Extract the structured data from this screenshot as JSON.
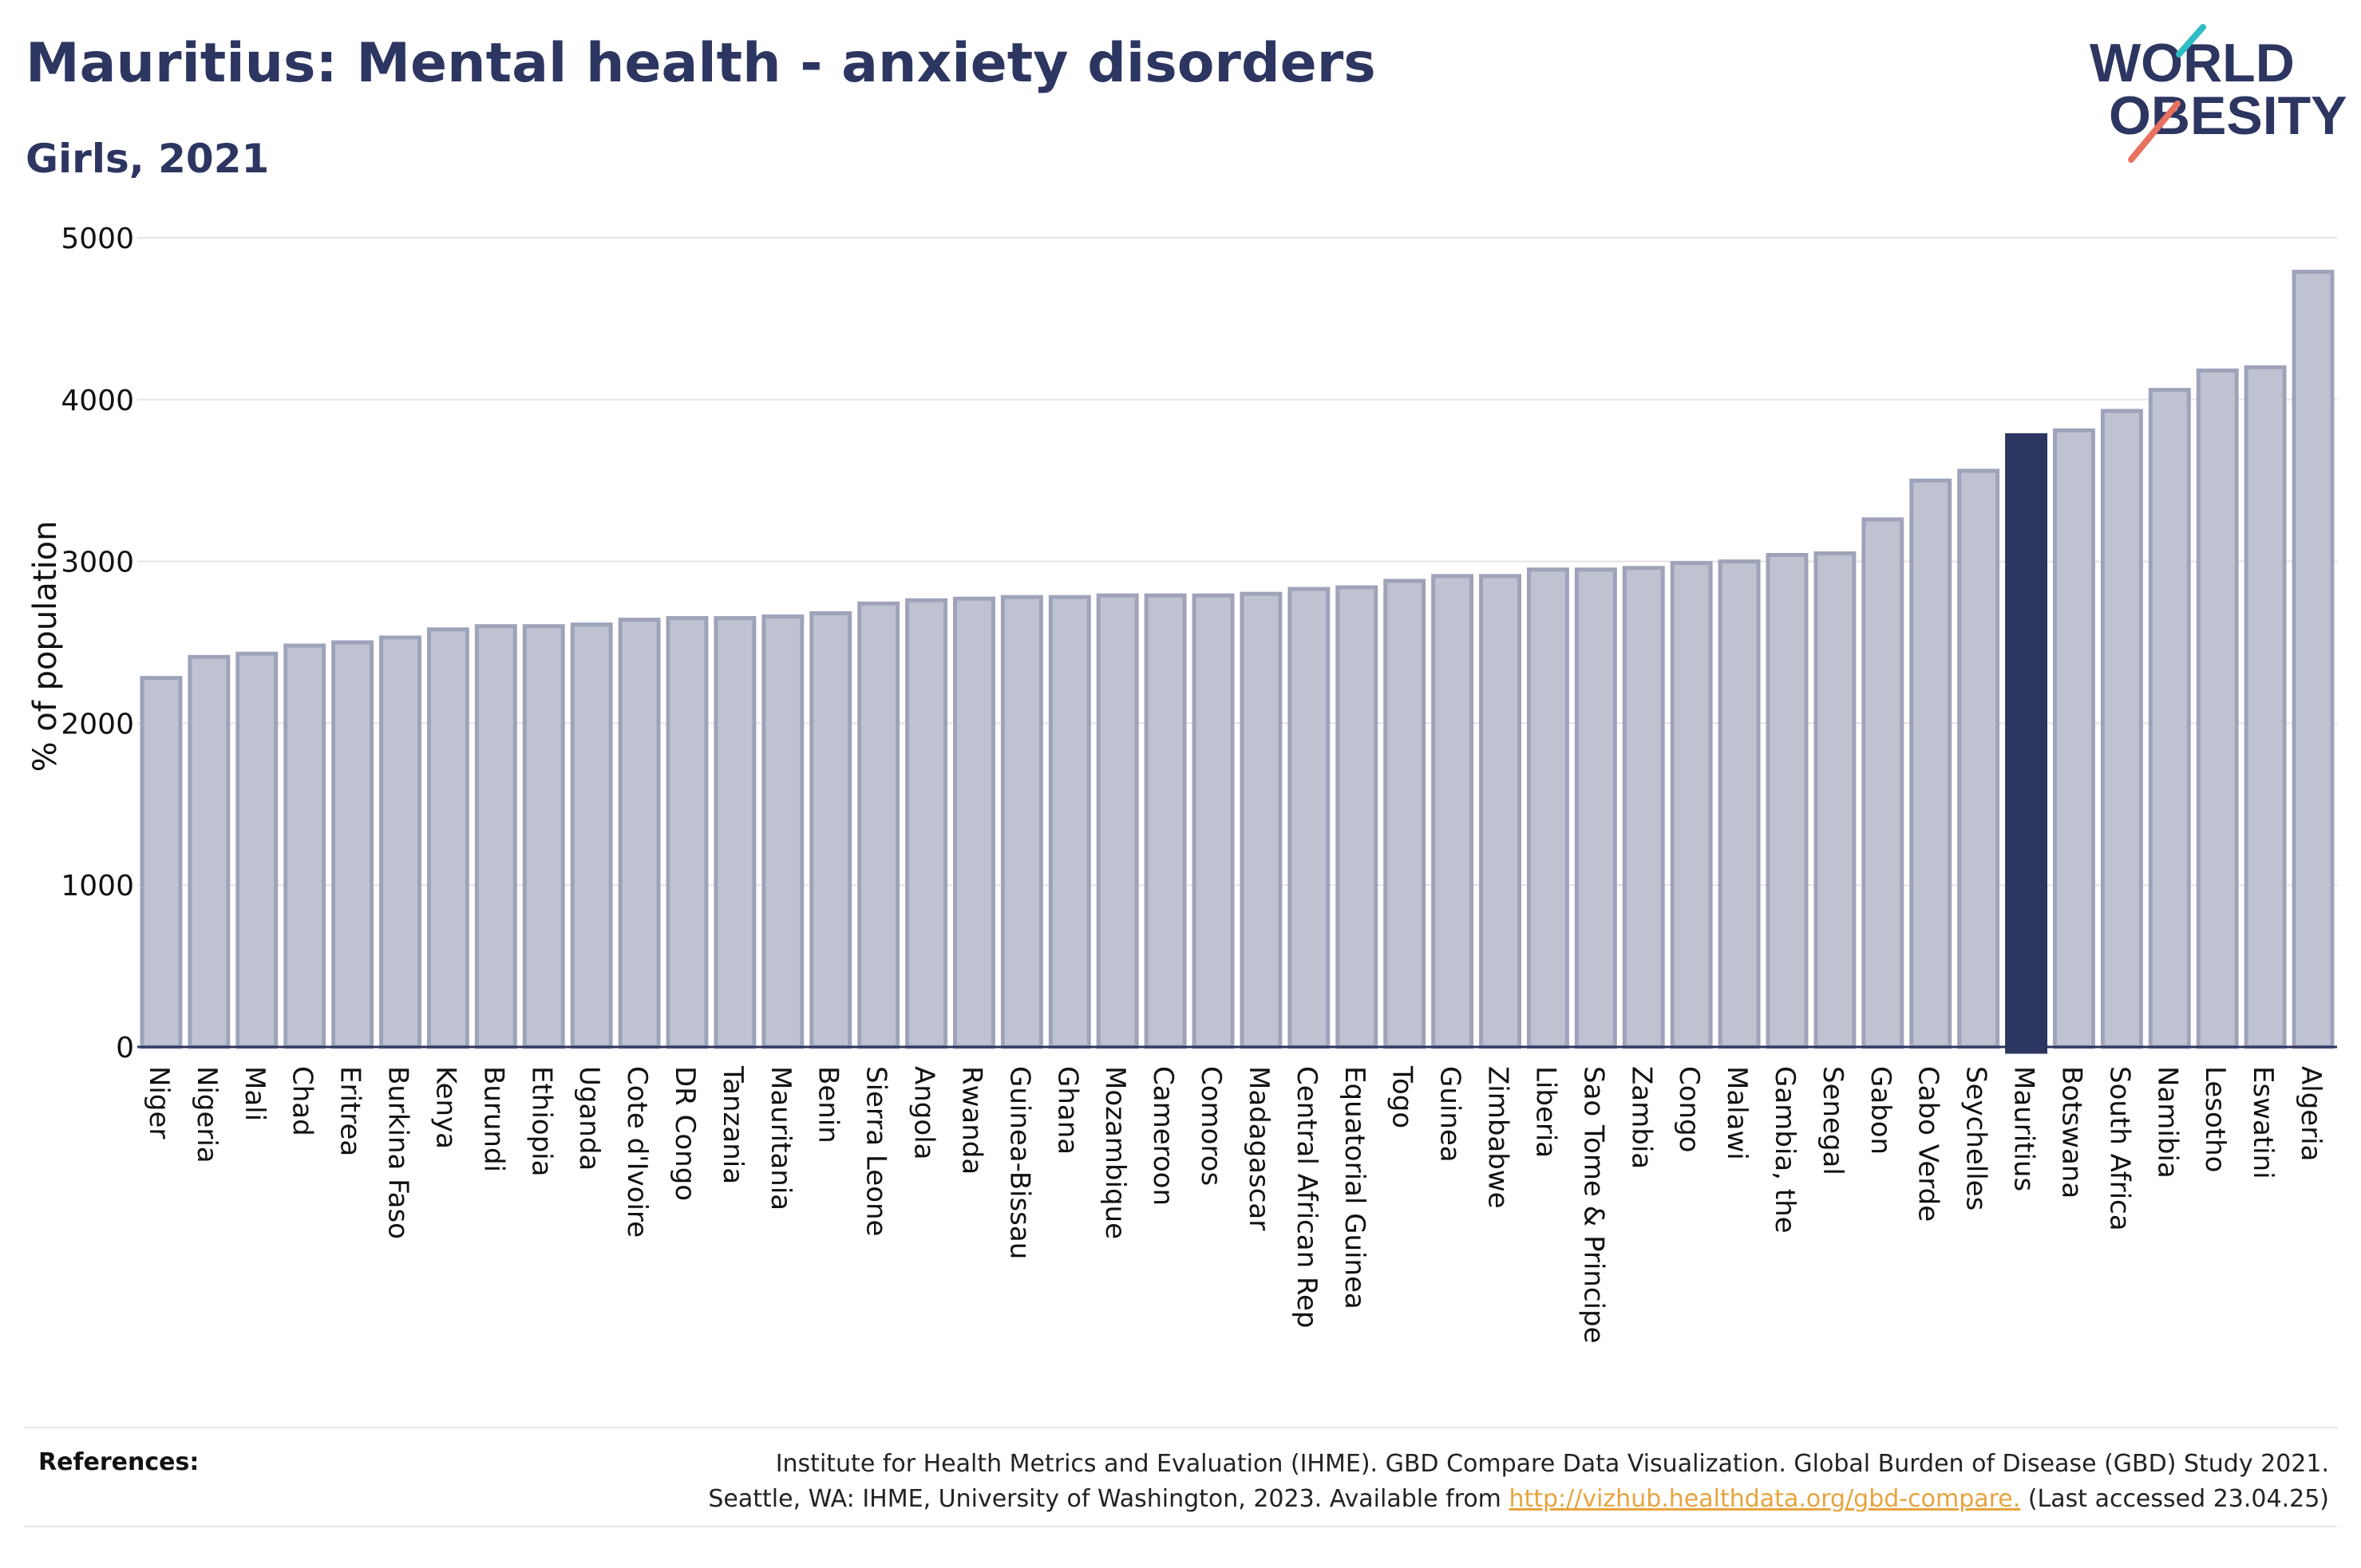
{
  "title": "Mauritius: Mental health - anxiety disorders",
  "subtitle": "Girls, 2021",
  "logo": {
    "line1": "WORLD",
    "line2": "OBESITY"
  },
  "colors": {
    "bar": "#bfc2d1",
    "bar_border": "#9ea3ba",
    "highlight": "#2d3561",
    "grid": "#e3e3e8",
    "text": "#2d3561"
  },
  "chart_data": {
    "type": "bar",
    "ylabel": "% of population",
    "ylim": [
      0,
      5000
    ],
    "yticks": [
      0,
      1000,
      2000,
      3000,
      4000,
      5000
    ],
    "grid": true,
    "highlight": "Mauritius",
    "categories": [
      "Niger",
      "Nigeria",
      "Mali",
      "Chad",
      "Eritrea",
      "Burkina Faso",
      "Kenya",
      "Burundi",
      "Ethiopia",
      "Uganda",
      "Cote d'Ivoire",
      "DR Congo",
      "Tanzania",
      "Mauritania",
      "Benin",
      "Sierra Leone",
      "Angola",
      "Rwanda",
      "Guinea-Bissau",
      "Ghana",
      "Mozambique",
      "Cameroon",
      "Comoros",
      "Madagascar",
      "Central African Rep",
      "Equatorial Guinea",
      "Togo",
      "Guinea",
      "Zimbabwe",
      "Liberia",
      "Sao Tome & Principe",
      "Zambia",
      "Congo",
      "Malawi",
      "Gambia, the",
      "Senegal",
      "Gabon",
      "Cabo Verde",
      "Seychelles",
      "Mauritius",
      "Botswana",
      "South Africa",
      "Namibia",
      "Lesotho",
      "Eswatini",
      "Algeria"
    ],
    "values": [
      2280,
      2410,
      2430,
      2480,
      2500,
      2530,
      2580,
      2600,
      2600,
      2610,
      2640,
      2650,
      2650,
      2660,
      2680,
      2740,
      2760,
      2770,
      2780,
      2780,
      2790,
      2790,
      2790,
      2800,
      2830,
      2840,
      2880,
      2910,
      2910,
      2950,
      2950,
      2960,
      2990,
      3000,
      3040,
      3050,
      3260,
      3500,
      3560,
      3780,
      3810,
      3930,
      4060,
      4180,
      4200,
      4790
    ]
  },
  "references": {
    "label": "References:",
    "line1": "Institute for Health Metrics and Evaluation (IHME). GBD Compare Data Visualization. Global Burden of Disease (GBD) Study 2021.",
    "line2_before": "Seattle, WA: IHME, University of Washington, 2023. Available from ",
    "link": "http://vizhub.healthdata.org/gbd-compare.",
    "line2_after": " (Last accessed 23.04.25)"
  }
}
